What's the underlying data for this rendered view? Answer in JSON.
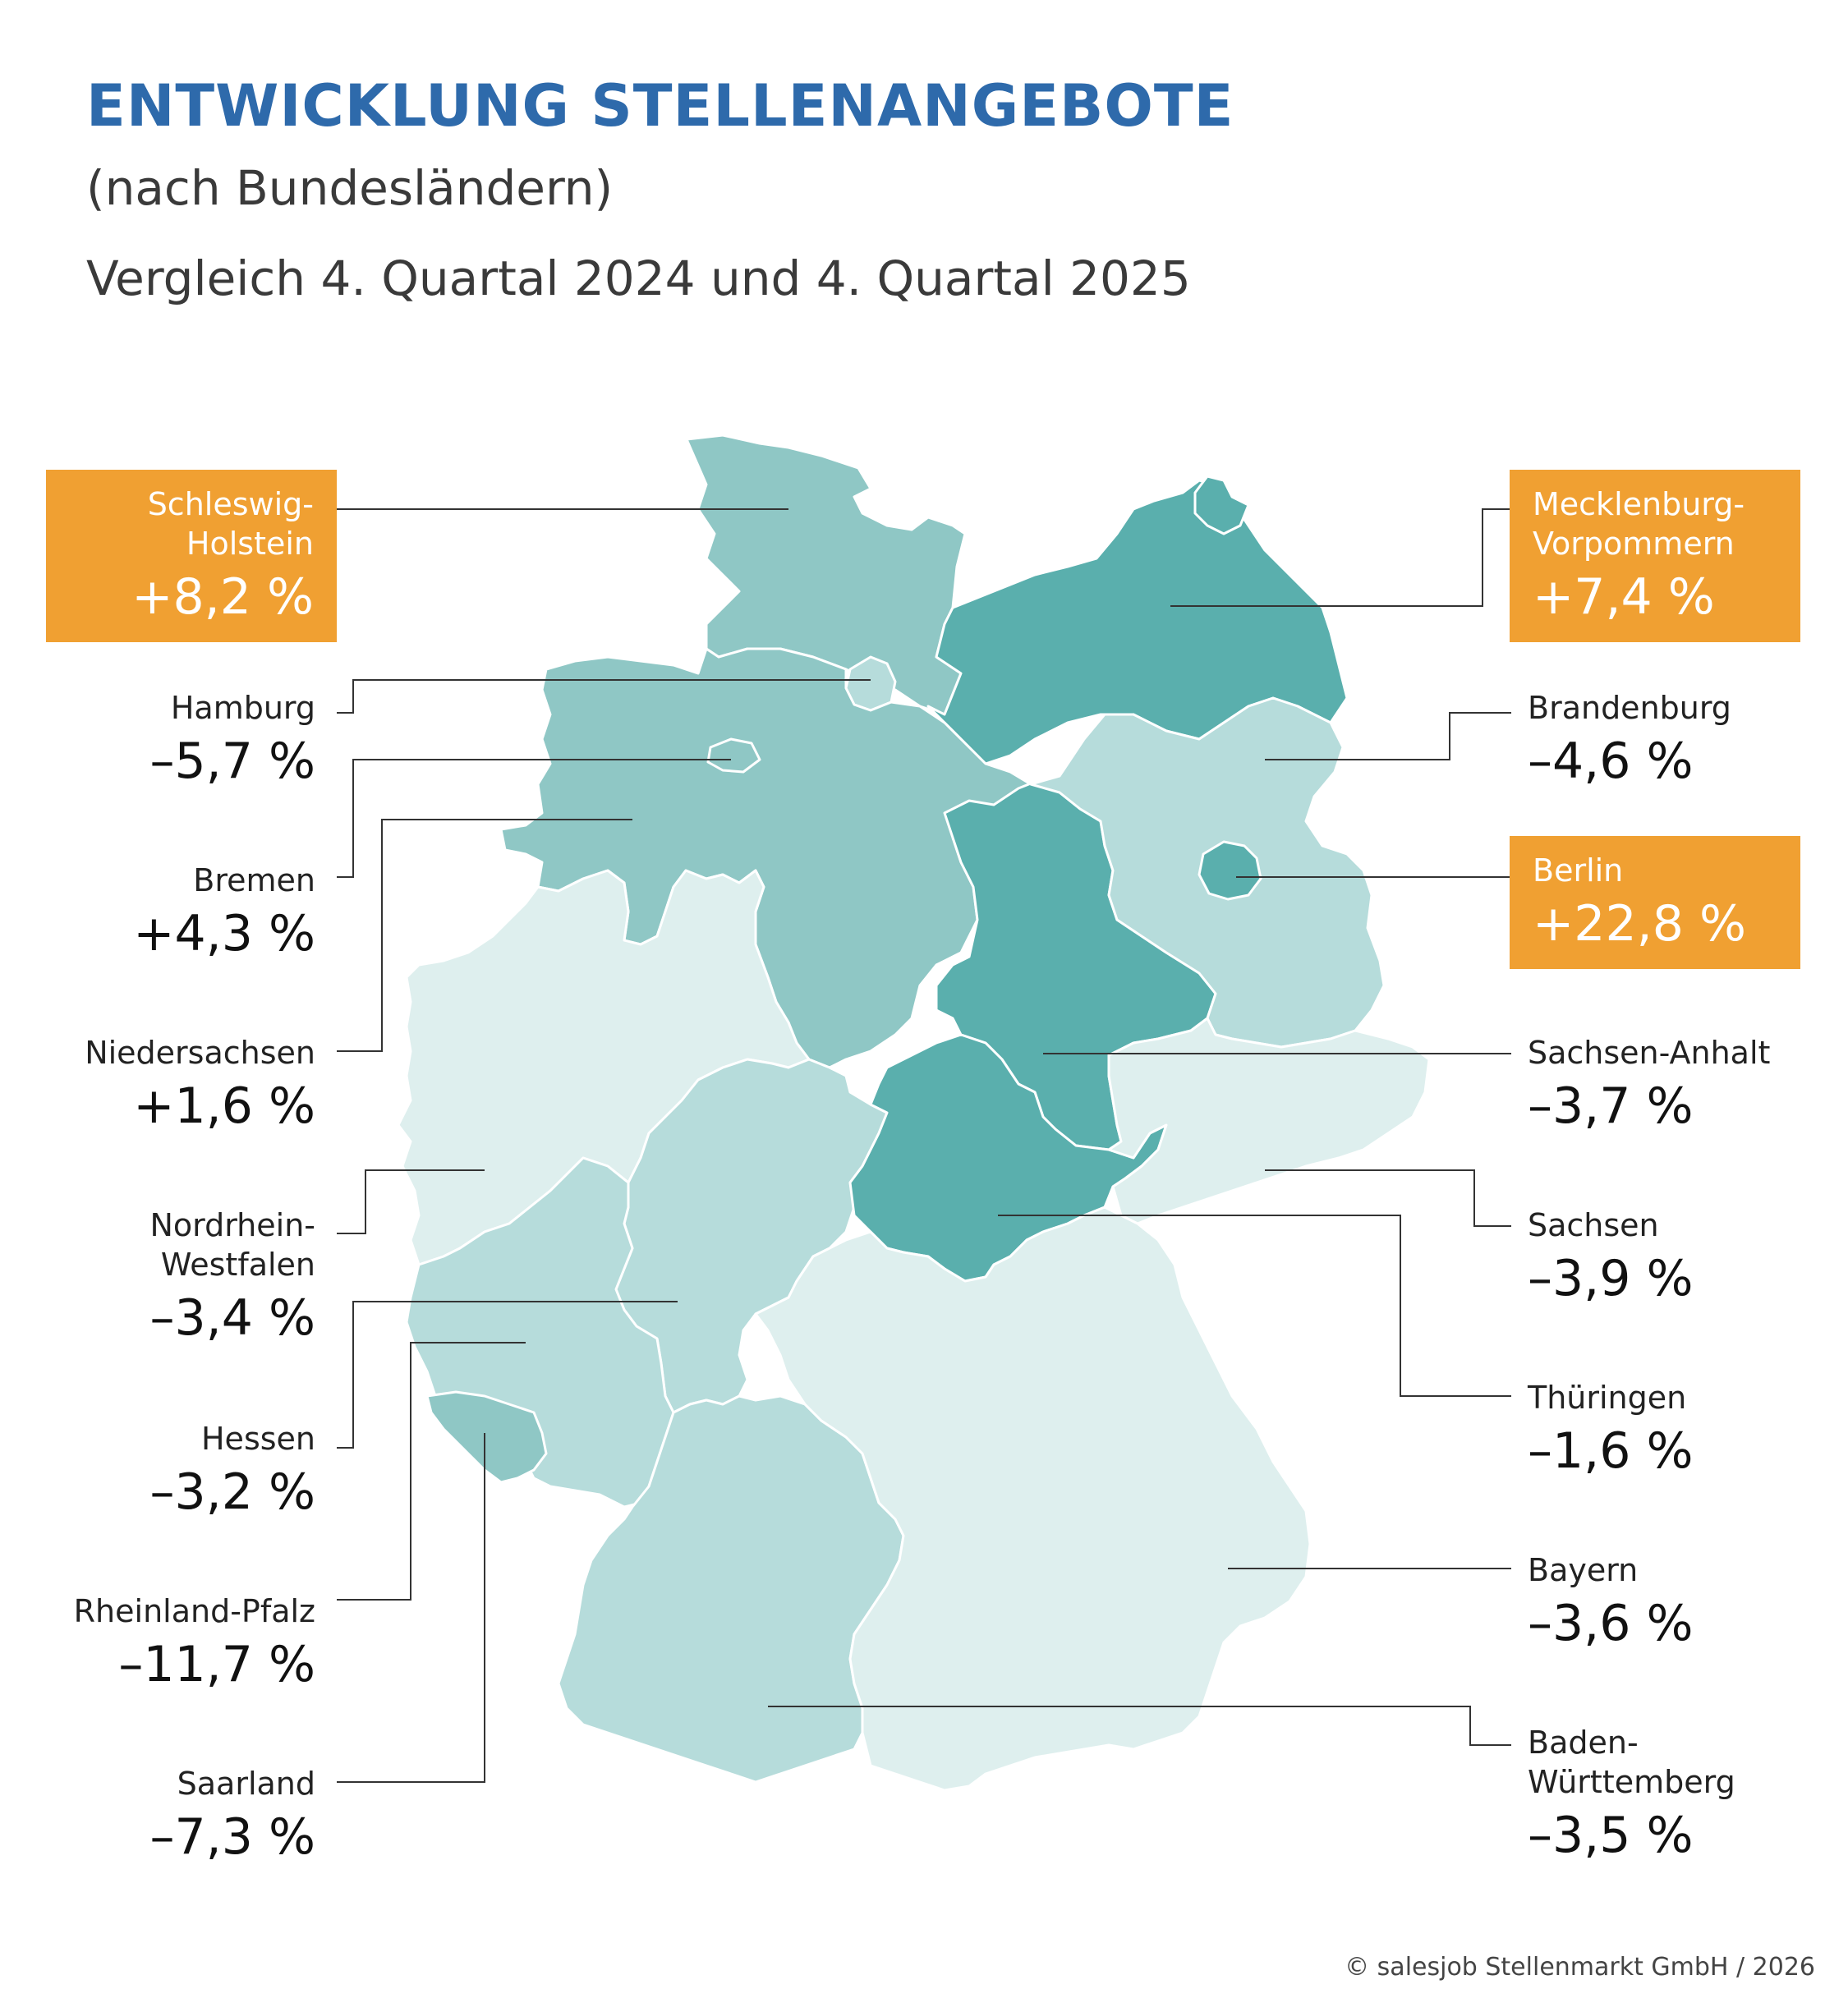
{
  "header": {
    "title": "ENTWICKLUNG STELLENANGEBOTE",
    "subtitle": "(nach Bundesländern)",
    "comparison": "Vergleich 4. Quartal 2024 und 4. Quartal 2025"
  },
  "colors": {
    "title": "#2e6aab",
    "highlight": "#f0a032",
    "dark_teal": "#5aafad",
    "mid_teal": "#8fc7c5",
    "light_teal": "#b6dcdb",
    "pale_teal": "#deefee"
  },
  "states": [
    {
      "name_lines": [
        "Schleswig-",
        "Holstein"
      ],
      "value": "+8,2 %",
      "highlight": true
    },
    {
      "name_lines": [
        "Hamburg"
      ],
      "value": "–5,7 %",
      "highlight": false
    },
    {
      "name_lines": [
        "Bremen"
      ],
      "value": "+4,3 %",
      "highlight": false
    },
    {
      "name_lines": [
        "Niedersachsen"
      ],
      "value": "+1,6 %",
      "highlight": false
    },
    {
      "name_lines": [
        "Nordrhein-",
        "Westfalen"
      ],
      "value": "–3,4 %",
      "highlight": false
    },
    {
      "name_lines": [
        "Hessen"
      ],
      "value": "–3,2 %",
      "highlight": false
    },
    {
      "name_lines": [
        "Rheinland-Pfalz"
      ],
      "value": "–11,7 %",
      "highlight": false
    },
    {
      "name_lines": [
        "Saarland"
      ],
      "value": "–7,3 %",
      "highlight": false
    },
    {
      "name_lines": [
        "Mecklenburg-",
        "Vorpommern"
      ],
      "value": "+7,4 %",
      "highlight": true
    },
    {
      "name_lines": [
        "Brandenburg"
      ],
      "value": "–4,6 %",
      "highlight": false
    },
    {
      "name_lines": [
        "Berlin"
      ],
      "value": "+22,8 %",
      "highlight": true
    },
    {
      "name_lines": [
        "Sachsen-Anhalt"
      ],
      "value": "–3,7 %",
      "highlight": false
    },
    {
      "name_lines": [
        "Sachsen"
      ],
      "value": "–3,9 %",
      "highlight": false
    },
    {
      "name_lines": [
        "Thüringen"
      ],
      "value": "–1,6 %",
      "highlight": false
    },
    {
      "name_lines": [
        "Bayern"
      ],
      "value": "–3,6 %",
      "highlight": false
    },
    {
      "name_lines": [
        "Baden-",
        "Württemberg"
      ],
      "value": "–3,5 %",
      "highlight": false
    }
  ],
  "footer": {
    "copyright": "© salesjob Stellenmarkt GmbH / 2026"
  }
}
